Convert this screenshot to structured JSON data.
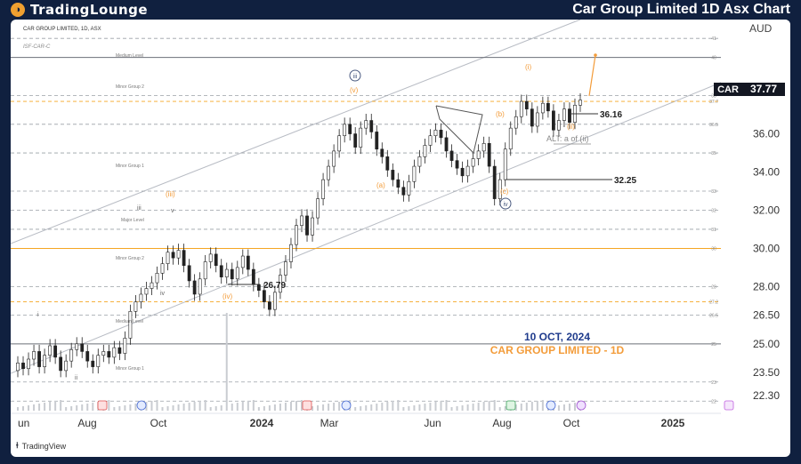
{
  "header": {
    "brand": "TradingLounge",
    "title": "Car Group Limited 1D Asx Chart"
  },
  "chart_data": {
    "type": "candlestick",
    "symbol_label": "CAR GROUP LIMITED, 1D, ASX",
    "sub_label": "ISF-CAR-C",
    "currency": "AUD",
    "ticker": "CAR",
    "last_price": "37.77",
    "ylim": [
      21.5,
      41.8
    ],
    "y_ticks": [
      "36.00",
      "34.00",
      "32.00",
      "30.00",
      "28.00",
      "26.50",
      "25.00",
      "23.50",
      "22.30"
    ],
    "x_ticks": [
      "un",
      "Aug",
      "Oct",
      "2024",
      "Mar",
      "Jun",
      "Aug",
      "Oct",
      "2025"
    ],
    "date_label": "10 OCT, 2024",
    "name_label": "CAR GROUP LIMITED - 1D",
    "price_labels": [
      "36.16",
      "32.25",
      "26.79"
    ],
    "alt_label": "ALT: a of (ii)",
    "wave_labels": [
      "i",
      "ii",
      "iii",
      "iv",
      "v",
      "(iii)",
      "(iv)",
      "(v)",
      "(a)",
      "(b)",
      "(c)",
      "(i)",
      "(ii)",
      "iii",
      "iv"
    ],
    "level_labels": [
      "Medium Level",
      "Minor Group 2",
      "Minor Group 1",
      "Major Level",
      "Minor Group 2",
      "Medium Level",
      "Minor Group 1"
    ],
    "axis_levels": [
      "41",
      "40",
      "38",
      "37.7",
      "36.5",
      "35",
      "33",
      "32",
      "31",
      "30",
      "28",
      "27.2",
      "26.5",
      "25",
      "23",
      "22"
    ],
    "series": [
      {
        "name": "close",
        "values": [
          24.0,
          23.7,
          24.2,
          24.6,
          23.8,
          24.4,
          24.9,
          24.3,
          23.6,
          24.1,
          24.7,
          25.0,
          24.6,
          24.1,
          23.8,
          24.4,
          24.6,
          24.3,
          24.8,
          24.5,
          25.3,
          26.7,
          27.2,
          27.6,
          27.9,
          28.2,
          28.7,
          29.2,
          29.8,
          29.5,
          29.9,
          29.1,
          28.3,
          27.6,
          28.4,
          29.3,
          29.7,
          29.1,
          28.5,
          28.9,
          28.4,
          29.0,
          29.6,
          28.9,
          28.1,
          27.8,
          27.2,
          26.8,
          27.7,
          28.6,
          29.3,
          30.2,
          31.2,
          31.7,
          30.7,
          31.6,
          32.6,
          33.6,
          34.3,
          35.1,
          35.9,
          36.5,
          36.0,
          35.3,
          36.3,
          36.7,
          36.1,
          35.2,
          34.8,
          34.1,
          33.6,
          33.2,
          32.8,
          33.5,
          34.3,
          34.8,
          35.4,
          35.9,
          36.2,
          35.8,
          35.1,
          34.6,
          34.2,
          33.8,
          34.3,
          34.7,
          35.1,
          35.5,
          34.3,
          32.6,
          33.6,
          35.2,
          36.3,
          36.9,
          37.7,
          37.3,
          36.4,
          37.1,
          37.6,
          37.2,
          36.2,
          36.7,
          37.3,
          36.6,
          37.5,
          37.77
        ]
      },
      {
        "name": "open",
        "values": [
          23.6,
          24.0,
          23.7,
          24.2,
          24.6,
          23.8,
          24.4,
          24.9,
          24.3,
          23.6,
          24.1,
          24.7,
          25.0,
          24.6,
          24.1,
          23.8,
          24.4,
          24.6,
          24.3,
          24.8,
          24.5,
          25.3,
          26.7,
          27.2,
          27.6,
          27.9,
          28.2,
          28.7,
          29.2,
          29.8,
          29.5,
          29.9,
          29.1,
          28.3,
          27.6,
          28.4,
          29.3,
          29.7,
          29.1,
          28.5,
          28.9,
          28.4,
          29.0,
          29.6,
          28.9,
          28.1,
          27.8,
          27.2,
          26.8,
          27.7,
          28.6,
          29.3,
          30.2,
          31.2,
          31.7,
          30.7,
          31.6,
          32.6,
          33.6,
          34.3,
          35.1,
          35.9,
          36.5,
          36.0,
          35.3,
          36.3,
          36.7,
          36.1,
          35.2,
          34.8,
          34.1,
          33.6,
          33.2,
          32.8,
          33.5,
          34.3,
          34.8,
          35.4,
          35.9,
          36.2,
          35.8,
          35.1,
          34.6,
          34.2,
          33.8,
          34.3,
          34.7,
          35.1,
          35.5,
          34.3,
          32.6,
          33.6,
          35.2,
          36.3,
          36.9,
          37.7,
          37.3,
          36.4,
          37.1,
          37.6,
          37.2,
          36.2,
          36.7,
          37.3,
          36.6,
          37.5
        ]
      }
    ]
  }
}
